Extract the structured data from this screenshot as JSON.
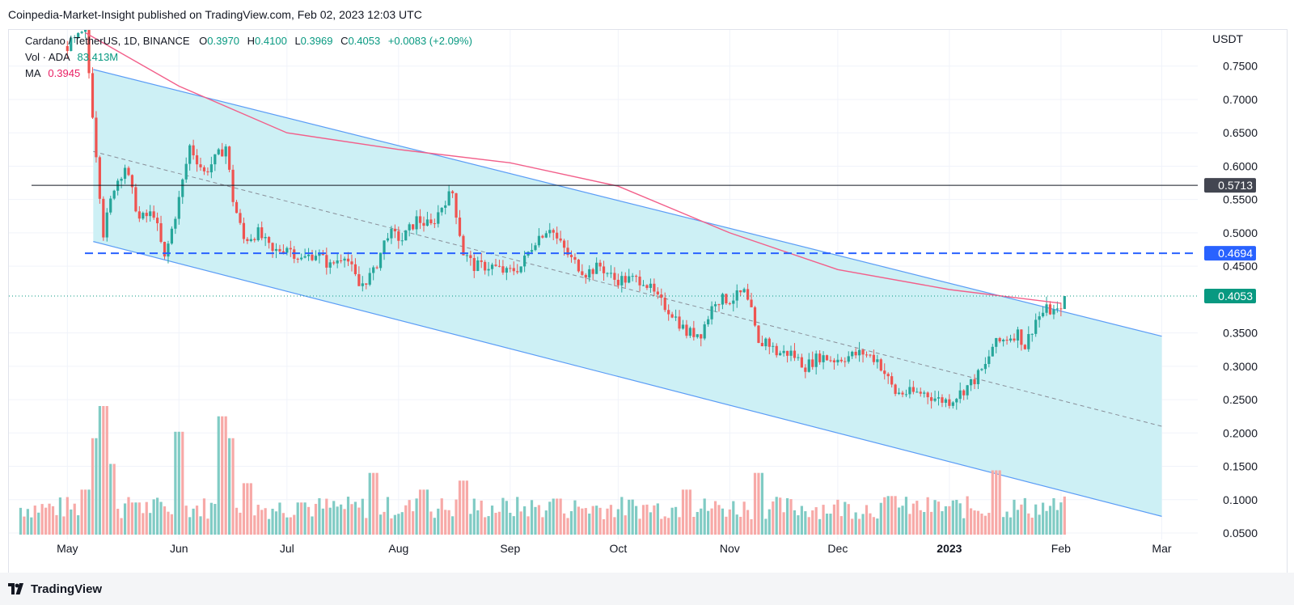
{
  "publisher": "Coinpedia-Market-Insight published on TradingView.com, Feb 02, 2023 12:03 UTC",
  "brand": "TradingView",
  "legend": {
    "symbol": "Cardano / TetherUS, 1D, BINANCE",
    "o_label": "O",
    "o": "0.3970",
    "h_label": "H",
    "h": "0.4100",
    "l_label": "L",
    "l": "0.3969",
    "c_label": "C",
    "c": "0.4053",
    "change": "+0.0083 (+2.09%)",
    "vol_label": "Vol · ADA",
    "vol": "83.413M",
    "ma_label": "MA",
    "ma": "0.3945"
  },
  "colors": {
    "up": "#26a69a",
    "down": "#ef5350",
    "channel_fill": "#cdf0f5",
    "channel_line": "#5b9cf6",
    "ma_line": "#f25f8a",
    "level_dashed": "#2962ff",
    "level_solid": "#131722",
    "price_line": "#089981",
    "grid": "#f0f3fa"
  },
  "chart_data": {
    "type": "candlestick",
    "title": "Cardano / TetherUS, 1D, BINANCE",
    "ylabel": "USDT",
    "ylim": [
      0.05,
      0.78
    ],
    "yticks": [
      "0.7500",
      "0.7000",
      "0.6500",
      "0.6000",
      "0.5500",
      "0.5000",
      "0.4500",
      "0.3500",
      "0.3000",
      "0.2500",
      "0.2000",
      "0.1500",
      "0.1000",
      "0.0500"
    ],
    "xticks": [
      {
        "label": "May",
        "date": "2022-05-01"
      },
      {
        "label": "Jun",
        "date": "2022-06-01"
      },
      {
        "label": "Jul",
        "date": "2022-07-01"
      },
      {
        "label": "Aug",
        "date": "2022-08-01"
      },
      {
        "label": "Sep",
        "date": "2022-09-01"
      },
      {
        "label": "Oct",
        "date": "2022-10-01"
      },
      {
        "label": "Nov",
        "date": "2022-11-01"
      },
      {
        "label": "Dec",
        "date": "2022-12-01"
      },
      {
        "label": "2023",
        "date": "2023-01-01"
      },
      {
        "label": "Feb",
        "date": "2023-02-01"
      },
      {
        "label": "Mar",
        "date": "2023-03-01"
      }
    ],
    "last_price": "0.4053",
    "horizontal_levels": [
      {
        "value": 0.5713,
        "label": "0.5713",
        "style": "solid"
      },
      {
        "value": 0.4694,
        "label": "0.4694",
        "style": "dashed"
      }
    ],
    "channel": {
      "upper": [
        {
          "date": "2022-05-01",
          "value": 0.745
        },
        {
          "date": "2023-03-01",
          "value": 0.345
        }
      ],
      "middle": [
        {
          "date": "2022-05-01",
          "value": 0.622
        },
        {
          "date": "2023-03-01",
          "value": 0.21
        }
      ],
      "lower": [
        {
          "date": "2022-05-01",
          "value": 0.487
        },
        {
          "date": "2023-03-01",
          "value": 0.075
        }
      ]
    },
    "ma_series": [
      {
        "date": "2022-05-06",
        "value": 0.84
      },
      {
        "date": "2022-06-01",
        "value": 0.72
      },
      {
        "date": "2022-07-01",
        "value": 0.65
      },
      {
        "date": "2022-08-01",
        "value": 0.625
      },
      {
        "date": "2022-09-01",
        "value": 0.605
      },
      {
        "date": "2022-10-01",
        "value": 0.57
      },
      {
        "date": "2022-11-01",
        "value": 0.5
      },
      {
        "date": "2022-12-01",
        "value": 0.445
      },
      {
        "date": "2023-01-01",
        "value": 0.415
      },
      {
        "date": "2023-02-01",
        "value": 0.3945
      }
    ],
    "price_series": [
      {
        "date": "2022-05-01",
        "close": 0.78
      },
      {
        "date": "2022-05-06",
        "close": 0.8
      },
      {
        "date": "2022-05-09",
        "close": 0.62
      },
      {
        "date": "2022-05-11",
        "close": 0.5
      },
      {
        "date": "2022-05-14",
        "close": 0.57
      },
      {
        "date": "2022-05-17",
        "close": 0.6
      },
      {
        "date": "2022-05-21",
        "close": 0.52
      },
      {
        "date": "2022-05-25",
        "close": 0.53
      },
      {
        "date": "2022-05-28",
        "close": 0.46
      },
      {
        "date": "2022-06-01",
        "close": 0.55
      },
      {
        "date": "2022-06-04",
        "close": 0.63
      },
      {
        "date": "2022-06-08",
        "close": 0.59
      },
      {
        "date": "2022-06-11",
        "close": 0.61
      },
      {
        "date": "2022-06-14",
        "close": 0.63
      },
      {
        "date": "2022-06-16",
        "close": 0.55
      },
      {
        "date": "2022-06-19",
        "close": 0.49
      },
      {
        "date": "2022-06-23",
        "close": 0.5
      },
      {
        "date": "2022-06-27",
        "close": 0.47
      },
      {
        "date": "2022-07-01",
        "close": 0.48
      },
      {
        "date": "2022-07-05",
        "close": 0.46
      },
      {
        "date": "2022-07-09",
        "close": 0.47
      },
      {
        "date": "2022-07-13",
        "close": 0.45
      },
      {
        "date": "2022-07-17",
        "close": 0.47
      },
      {
        "date": "2022-07-21",
        "close": 0.42
      },
      {
        "date": "2022-07-25",
        "close": 0.44
      },
      {
        "date": "2022-07-29",
        "close": 0.5
      },
      {
        "date": "2022-08-02",
        "close": 0.49
      },
      {
        "date": "2022-08-06",
        "close": 0.52
      },
      {
        "date": "2022-08-10",
        "close": 0.51
      },
      {
        "date": "2022-08-14",
        "close": 0.55
      },
      {
        "date": "2022-08-16",
        "close": 0.56
      },
      {
        "date": "2022-08-19",
        "close": 0.47
      },
      {
        "date": "2022-08-22",
        "close": 0.45
      },
      {
        "date": "2022-08-27",
        "close": 0.45
      },
      {
        "date": "2022-08-31",
        "close": 0.44
      },
      {
        "date": "2022-09-04",
        "close": 0.45
      },
      {
        "date": "2022-09-08",
        "close": 0.49
      },
      {
        "date": "2022-09-12",
        "close": 0.51
      },
      {
        "date": "2022-09-14",
        "close": 0.49
      },
      {
        "date": "2022-09-18",
        "close": 0.46
      },
      {
        "date": "2022-09-22",
        "close": 0.44
      },
      {
        "date": "2022-09-26",
        "close": 0.45
      },
      {
        "date": "2022-09-30",
        "close": 0.43
      },
      {
        "date": "2022-10-04",
        "close": 0.43
      },
      {
        "date": "2022-10-08",
        "close": 0.43
      },
      {
        "date": "2022-10-12",
        "close": 0.4
      },
      {
        "date": "2022-10-16",
        "close": 0.38
      },
      {
        "date": "2022-10-20",
        "close": 0.35
      },
      {
        "date": "2022-10-24",
        "close": 0.35
      },
      {
        "date": "2022-10-28",
        "close": 0.4
      },
      {
        "date": "2022-11-01",
        "close": 0.4
      },
      {
        "date": "2022-11-05",
        "close": 0.41
      },
      {
        "date": "2022-11-07",
        "close": 0.38
      },
      {
        "date": "2022-11-09",
        "close": 0.33
      },
      {
        "date": "2022-11-11",
        "close": 0.34
      },
      {
        "date": "2022-11-14",
        "close": 0.32
      },
      {
        "date": "2022-11-18",
        "close": 0.32
      },
      {
        "date": "2022-11-22",
        "close": 0.3
      },
      {
        "date": "2022-11-26",
        "close": 0.315
      },
      {
        "date": "2022-11-30",
        "close": 0.31
      },
      {
        "date": "2022-12-04",
        "close": 0.315
      },
      {
        "date": "2022-12-08",
        "close": 0.32
      },
      {
        "date": "2022-12-12",
        "close": 0.31
      },
      {
        "date": "2022-12-15",
        "close": 0.28
      },
      {
        "date": "2022-12-17",
        "close": 0.26
      },
      {
        "date": "2022-12-21",
        "close": 0.26
      },
      {
        "date": "2022-12-25",
        "close": 0.26
      },
      {
        "date": "2022-12-29",
        "close": 0.25
      },
      {
        "date": "2023-01-01",
        "close": 0.248
      },
      {
        "date": "2023-01-04",
        "close": 0.26
      },
      {
        "date": "2023-01-08",
        "close": 0.28
      },
      {
        "date": "2023-01-11",
        "close": 0.3
      },
      {
        "date": "2023-01-13",
        "close": 0.33
      },
      {
        "date": "2023-01-16",
        "close": 0.34
      },
      {
        "date": "2023-01-20",
        "close": 0.35
      },
      {
        "date": "2023-01-22",
        "close": 0.33
      },
      {
        "date": "2023-01-25",
        "close": 0.37
      },
      {
        "date": "2023-01-28",
        "close": 0.385
      },
      {
        "date": "2023-01-31",
        "close": 0.38
      },
      {
        "date": "2023-02-02",
        "close": 0.4053
      }
    ],
    "volume_series": [
      {
        "date": "2022-05-06",
        "value": 0.35
      },
      {
        "date": "2022-05-09",
        "value": 0.75
      },
      {
        "date": "2022-05-11",
        "value": 1.0
      },
      {
        "date": "2022-05-13",
        "value": 0.55
      },
      {
        "date": "2022-05-20",
        "value": 0.25
      },
      {
        "date": "2022-06-01",
        "value": 0.3
      },
      {
        "date": "2022-06-01",
        "value": 0.8
      },
      {
        "date": "2022-06-13",
        "value": 0.92
      },
      {
        "date": "2022-06-15",
        "value": 0.75
      },
      {
        "date": "2022-06-20",
        "value": 0.4
      },
      {
        "date": "2022-07-05",
        "value": 0.25
      },
      {
        "date": "2022-07-25",
        "value": 0.48
      },
      {
        "date": "2022-08-08",
        "value": 0.35
      },
      {
        "date": "2022-08-19",
        "value": 0.42
      },
      {
        "date": "2022-09-14",
        "value": 0.28
      },
      {
        "date": "2022-10-20",
        "value": 0.35
      },
      {
        "date": "2022-11-09",
        "value": 0.48
      },
      {
        "date": "2022-12-16",
        "value": 0.3
      },
      {
        "date": "2023-01-14",
        "value": 0.5
      },
      {
        "date": "2023-02-02",
        "value": 0.2
      }
    ]
  }
}
